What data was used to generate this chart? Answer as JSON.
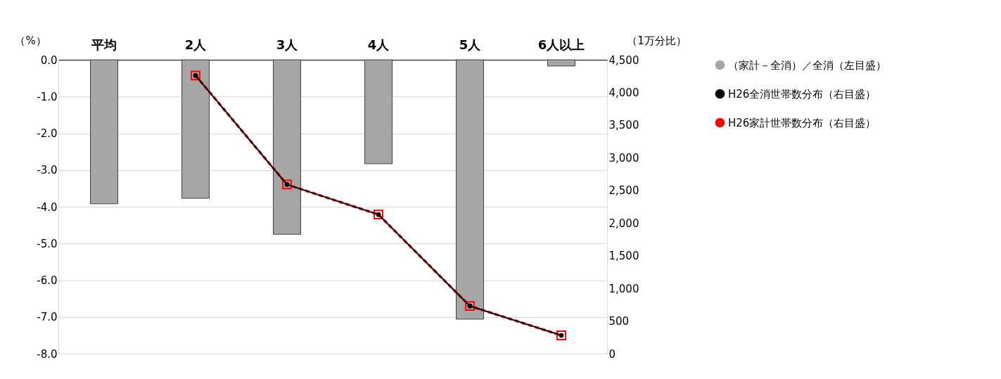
{
  "chart_data": {
    "type": "bar",
    "categories": [
      "平均",
      "2人",
      "3人",
      "4人",
      "5人",
      "6人以上"
    ],
    "ylabel": "（%）",
    "y2label": "（1万分比）",
    "series": [
      {
        "name": "（家計－全消）／全消（左目盛）",
        "color": "#a6a6a6",
        "values": [
          -3.92,
          -3.77,
          -4.75,
          -2.83,
          -7.06,
          -0.17
        ]
      },
      {
        "name": "H26全消世帯数分布（右目盛）",
        "type": "line",
        "axis": "y2",
        "color": "#000000",
        "marker": "circle",
        "line_style": "solid",
        "values": [
          null,
          4260,
          2590,
          2130,
          730,
          280
        ]
      },
      {
        "name": "H26家計世帯数分布（右目盛）",
        "type": "line",
        "axis": "y2",
        "color": "#ff0000",
        "marker": "square",
        "line_style": "dashed",
        "values": [
          null,
          4260,
          2590,
          2130,
          730,
          280
        ]
      }
    ],
    "ylim": [
      -8,
      0
    ],
    "yticks": [
      {
        "value": 0,
        "label": "0.0"
      },
      {
        "value": -1,
        "label": "-1.0"
      },
      {
        "value": -2,
        "label": "-2.0"
      },
      {
        "value": -3,
        "label": "-3.0"
      },
      {
        "value": -4,
        "label": "-4.0"
      },
      {
        "value": -5,
        "label": "-5.0"
      },
      {
        "value": -6,
        "label": "-6.0"
      },
      {
        "value": -7,
        "label": "-7.0"
      },
      {
        "value": -8,
        "label": "-8.0"
      }
    ],
    "y2lim": [
      0,
      4500
    ],
    "y2ticks": [
      0,
      {
        "value": 500,
        "label": "500"
      },
      {
        "value": 1000,
        "label": "1,000"
      },
      {
        "value": 1500,
        "label": "1,500"
      },
      {
        "value": 2000,
        "label": "2,000"
      },
      {
        "value": 2500,
        "label": "2,500"
      },
      {
        "value": 3000,
        "label": "3,000"
      },
      {
        "value": 3500,
        "label": "3,500"
      },
      {
        "value": 4000,
        "label": "4,000"
      },
      {
        "value": 4500,
        "label": "4,500"
      }
    ],
    "grid": "y",
    "legend": "right"
  }
}
